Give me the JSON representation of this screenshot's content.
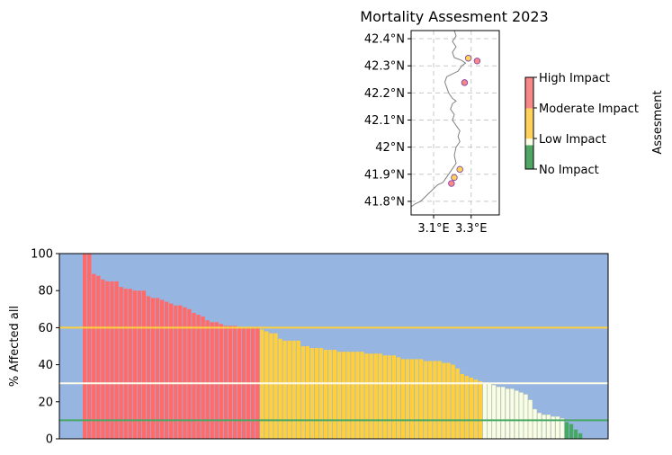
{
  "chart_data": [
    {
      "type": "map",
      "title": "Mortality Assesment 2023",
      "lon_range": [
        2.98,
        3.45
      ],
      "lat_range": [
        41.75,
        42.43
      ],
      "x_ticks": [
        {
          "value": 3.1,
          "label": "3.1°E"
        },
        {
          "value": 3.3,
          "label": "3.3°E"
        }
      ],
      "y_ticks": [
        {
          "value": 41.8,
          "label": "41.8°N"
        },
        {
          "value": 41.9,
          "label": "41.9°N"
        },
        {
          "value": 42.0,
          "label": "42°N"
        },
        {
          "value": 42.1,
          "label": "42.1°N"
        },
        {
          "value": 42.2,
          "label": "42.2°N"
        },
        {
          "value": 42.3,
          "label": "42.3°N"
        },
        {
          "value": 42.4,
          "label": "42.4°N"
        }
      ],
      "grid": true,
      "coastline": [
        [
          3.21,
          42.43
        ],
        [
          3.22,
          42.41
        ],
        [
          3.2,
          42.39
        ],
        [
          3.22,
          42.37
        ],
        [
          3.2,
          42.35
        ],
        [
          3.21,
          42.33
        ],
        [
          3.25,
          42.32
        ],
        [
          3.27,
          42.31
        ],
        [
          3.25,
          42.3
        ],
        [
          3.23,
          42.28
        ],
        [
          3.2,
          42.27
        ],
        [
          3.17,
          42.26
        ],
        [
          3.16,
          42.24
        ],
        [
          3.17,
          42.22
        ],
        [
          3.18,
          42.2
        ],
        [
          3.2,
          42.18
        ],
        [
          3.22,
          42.17
        ],
        [
          3.2,
          42.16
        ],
        [
          3.19,
          42.14
        ],
        [
          3.21,
          42.12
        ],
        [
          3.2,
          42.1
        ],
        [
          3.22,
          42.08
        ],
        [
          3.24,
          42.06
        ],
        [
          3.23,
          42.04
        ],
        [
          3.24,
          42.02
        ],
        [
          3.22,
          42.0
        ],
        [
          3.21,
          41.97
        ],
        [
          3.22,
          41.94
        ],
        [
          3.2,
          41.92
        ],
        [
          3.18,
          41.9
        ],
        [
          3.15,
          41.87
        ],
        [
          3.12,
          41.86
        ],
        [
          3.09,
          41.84
        ],
        [
          3.06,
          41.82
        ],
        [
          3.03,
          41.8
        ],
        [
          3.0,
          41.79
        ],
        [
          2.98,
          41.78
        ]
      ],
      "points": [
        {
          "lon": 3.285,
          "lat": 42.328,
          "impact": "Moderate Impact"
        },
        {
          "lon": 3.332,
          "lat": 42.318,
          "impact": "High Impact"
        },
        {
          "lon": 3.265,
          "lat": 42.238,
          "impact": "High Impact"
        },
        {
          "lon": 3.24,
          "lat": 41.918,
          "impact": "Moderate Impact"
        },
        {
          "lon": 3.21,
          "lat": 41.888,
          "impact": "Moderate Impact"
        },
        {
          "lon": 3.195,
          "lat": 41.866,
          "impact": "High Impact"
        }
      ],
      "colorbar": {
        "label": "Assesment",
        "levels": [
          {
            "label": "High Impact",
            "color": "#f88888"
          },
          {
            "label": "Moderate Impact",
            "color": "#ffd259"
          },
          {
            "label": "Low Impact",
            "color": "#fbfde6"
          },
          {
            "label": "No Impact",
            "color": "#4fa665"
          }
        ]
      }
    },
    {
      "type": "bar",
      "ylabel": "% Affected all",
      "ylim": [
        0,
        100
      ],
      "y_ticks": [
        0,
        20,
        40,
        60,
        80,
        100
      ],
      "background": "#96b5e1",
      "thresholds": [
        {
          "value": 60,
          "color": "#ffd03c"
        },
        {
          "value": 30,
          "color": "#fffbe9"
        },
        {
          "value": 10,
          "color": "#47a864"
        }
      ],
      "category_colors": {
        "high": "#ff6b6b",
        "moderate": "#ffd03c",
        "low": "#fafde6",
        "none": "#47a864"
      },
      "values": [
        100,
        100,
        89,
        88,
        86,
        85,
        85,
        85,
        82,
        81,
        81,
        80,
        80,
        80,
        77,
        76,
        76,
        75,
        74,
        73,
        72,
        72,
        71,
        70,
        68,
        67,
        66,
        64,
        63,
        63,
        62,
        61,
        61,
        61,
        60,
        60,
        60,
        60,
        60,
        59,
        58,
        57,
        57,
        54,
        53,
        53,
        53,
        53,
        50,
        50,
        49,
        49,
        49,
        48,
        48,
        48,
        47,
        47,
        47,
        47,
        47,
        47,
        46,
        46,
        46,
        46,
        45,
        45,
        45,
        44,
        43,
        43,
        43,
        43,
        43,
        42,
        42,
        42,
        42,
        41,
        41,
        40,
        38,
        35,
        34,
        33,
        32,
        31,
        30,
        30,
        29,
        28,
        28,
        27,
        27,
        26,
        25,
        24,
        21,
        16,
        14,
        13,
        13,
        12,
        12,
        11,
        9,
        8,
        5,
        3
      ],
      "categories_per_bar": {
        "high": 39,
        "moderate": 49,
        "low": 18,
        "none": 4
      }
    }
  ]
}
